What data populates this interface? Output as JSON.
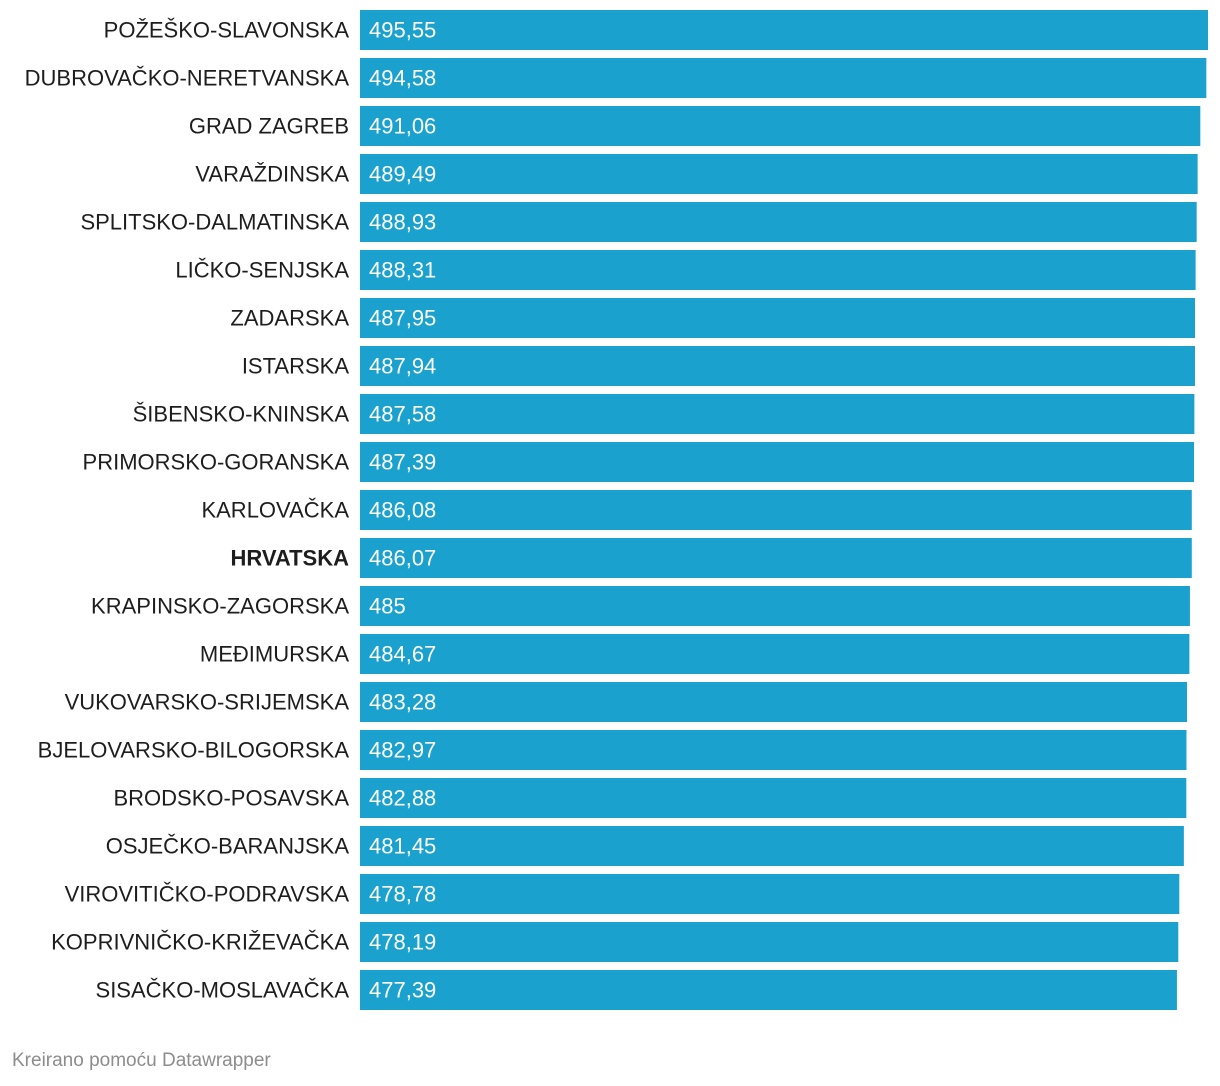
{
  "chart_data": {
    "type": "bar",
    "orientation": "horizontal",
    "categories": [
      "POŽEŠKO-SLAVONSKA",
      "DUBROVAČKO-NERETVANSKA",
      "GRAD ZAGREB",
      "VARAŽDINSKA",
      "SPLITSKO-DALMATINSKA",
      "LIČKO-SENJSKA",
      "ZADARSKA",
      "ISTARSKA",
      "ŠIBENSKO-KNINSKA",
      "PRIMORSKO-GORANSKA",
      "KARLOVAČKA",
      "HRVATSKA",
      "KRAPINSKO-ZAGORSKA",
      "MEĐIMURSKA",
      "VUKOVARSKO-SRIJEMSKA",
      "BJELOVARSKO-BILOGORSKA",
      "BRODSKO-POSAVSKA",
      "OSJEČKO-BARANJSKA",
      "VIROVITIČKO-PODRAVSKA",
      "KOPRIVNIČKO-KRIŽEVAČKA",
      "SISAČKO-MOSLAVAČKA"
    ],
    "values": [
      495.55,
      494.58,
      491.06,
      489.49,
      488.93,
      488.31,
      487.95,
      487.94,
      487.58,
      487.39,
      486.08,
      486.07,
      485,
      484.67,
      483.28,
      482.97,
      482.88,
      481.45,
      478.78,
      478.19,
      477.39
    ],
    "value_labels": [
      "495,55",
      "494,58",
      "491,06",
      "489,49",
      "488,93",
      "488,31",
      "487,95",
      "487,94",
      "487,58",
      "487,39",
      "486,08",
      "486,07",
      "485",
      "484,67",
      "483,28",
      "482,97",
      "482,88",
      "481,45",
      "478,78",
      "478,19",
      "477,39"
    ],
    "highlighted_category": "HRVATSKA",
    "xlim": [
      0,
      495.55
    ],
    "grid": false,
    "bar_color": "#1aa1ce",
    "value_label_color": "#ffffff",
    "label_color": "#1d1d1d"
  },
  "footer": {
    "credit": "Kreirano pomoću Datawrapper"
  }
}
